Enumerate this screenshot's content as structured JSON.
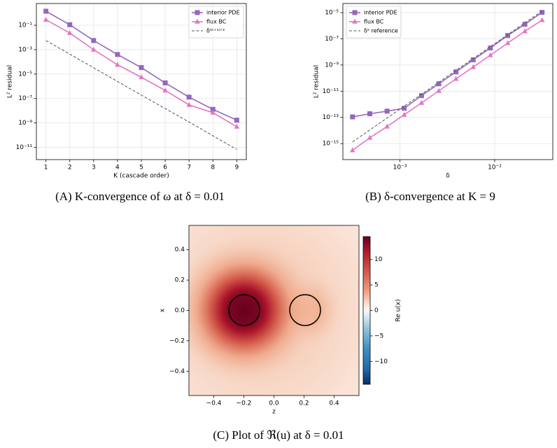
{
  "chart_data": [
    {
      "type": "line",
      "caption": "(A) K-convergence of ω at δ = 0.01",
      "xlabel": "K (cascade order)",
      "ylabel": "L² residual",
      "xscale": "linear",
      "yscale": "log",
      "grid": true,
      "legend": "upper right",
      "x": [
        1,
        2,
        3,
        4,
        5,
        6,
        7,
        8,
        9
      ],
      "xlim": [
        0.6,
        9.4
      ],
      "xticks": [
        1,
        2,
        3,
        4,
        5,
        6,
        7,
        8,
        9
      ],
      "ylim": [
        1e-12,
        6
      ],
      "yticks": [
        {
          "value": 0.1,
          "label": "10⁻¹"
        },
        {
          "value": 0.001,
          "label": "10⁻³"
        },
        {
          "value": 1e-05,
          "label": "10⁻⁵"
        },
        {
          "value": 1e-07,
          "label": "10⁻⁷"
        },
        {
          "value": 1e-09,
          "label": "10⁻⁹"
        },
        {
          "value": 1e-11,
          "label": "10⁻¹¹"
        }
      ],
      "series": [
        {
          "name": "interior PDE",
          "color": "#9467bd",
          "marker": "square",
          "values": [
            1.4,
            0.11,
            0.0056,
            0.0004,
            3.4e-05,
            1.9e-06,
            1.3e-07,
            1.3e-08,
            1.7e-09
          ]
        },
        {
          "name": "flux BC",
          "color": "#e377c2",
          "marker": "triangle",
          "values": [
            0.28,
            0.023,
            0.001,
            5.8e-05,
            5.5e-06,
            4.6e-07,
            3e-08,
            6.9e-09,
            5e-10
          ]
        },
        {
          "name": "δ⁽ᴷ⁺¹⁾ᐟ²",
          "color": "#555555",
          "marker": "none",
          "dash": true,
          "values": [
            0.0056,
            0.00043,
            3.3e-05,
            2.5e-06,
            1.9e-07,
            1.5e-08,
            1.2e-09,
            8.9e-11,
            6.8e-12
          ]
        }
      ]
    },
    {
      "type": "line",
      "caption": "(B) δ-convergence at K = 9",
      "xlabel": "δ",
      "ylabel": "L² residual",
      "xscale": "log",
      "yscale": "log",
      "grid": true,
      "legend": "upper left",
      "x": [
        0.000316,
        0.000481,
        0.000731,
        0.00111,
        0.00169,
        0.00257,
        0.0039,
        0.00593,
        0.009,
        0.0137,
        0.0208,
        0.0316
      ],
      "xlim": [
        0.00025,
        0.041
      ],
      "xticks": [
        {
          "value": 0.001,
          "label": "10⁻³"
        },
        {
          "value": 0.01,
          "label": "10⁻²"
        }
      ],
      "ylim": [
        6e-17,
        5e-05
      ],
      "yticks": [
        {
          "value": 1e-05,
          "label": "10⁻⁵"
        },
        {
          "value": 1e-07,
          "label": "10⁻⁷"
        },
        {
          "value": 1e-09,
          "label": "10⁻⁹"
        },
        {
          "value": 1e-11,
          "label": "10⁻¹¹"
        },
        {
          "value": 1e-13,
          "label": "10⁻¹³"
        },
        {
          "value": 1e-15,
          "label": "10⁻¹⁵"
        }
      ],
      "series": [
        {
          "name": "interior PDE",
          "color": "#9467bd",
          "marker": "square",
          "values": [
            1.1e-13,
            1.9e-13,
            3e-13,
            5e-13,
            4.6e-12,
            3.7e-11,
            3e-10,
            2.5e-09,
            2e-08,
            1.8e-07,
            1.3e-06,
            1.05e-05
          ]
        },
        {
          "name": "flux BC",
          "color": "#e377c2",
          "marker": "triangle",
          "values": [
            3.1e-16,
            2.8e-15,
            2e-14,
            1.6e-13,
            1.3e-12,
            1.07e-11,
            8.7e-11,
            7e-10,
            5.7e-09,
            4.7e-08,
            3.8e-07,
            2.7e-06
          ]
        },
        {
          "name": "δ⁵ reference",
          "color": "#555555",
          "marker": "none",
          "dash": true,
          "x": [
            0.000316,
            0.0316
          ],
          "values": [
            1.35e-15,
            1.35e-05
          ]
        }
      ]
    },
    {
      "type": "heatmap",
      "caption": "(C) Plot of ℜ(u) at δ = 0.01",
      "xlabel": "z",
      "ylabel": "x",
      "colorbar_label": "Re u(x)",
      "xlim": [
        -0.565,
        0.565
      ],
      "ylim": [
        -0.56,
        0.56
      ],
      "xticks": [
        {
          "value": -0.4,
          "label": "−0.4"
        },
        {
          "value": -0.2,
          "label": "−0.2"
        },
        {
          "value": 0,
          "label": "0.0"
        },
        {
          "value": 0.2,
          "label": "0.2"
        },
        {
          "value": 0.4,
          "label": "0.4"
        }
      ],
      "yticks": [
        {
          "value": -0.4,
          "label": "−0.4"
        },
        {
          "value": -0.2,
          "label": "−0.2"
        },
        {
          "value": 0,
          "label": "0.0"
        },
        {
          "value": 0.2,
          "label": "0.2"
        },
        {
          "value": 0.4,
          "label": "0.4"
        }
      ],
      "clim": [
        -14.5,
        14.5
      ],
      "cticks": [
        {
          "value": -10,
          "label": "−10"
        },
        {
          "value": -5,
          "label": "−5"
        },
        {
          "value": 0,
          "label": "0"
        },
        {
          "value": 5,
          "label": "5"
        },
        {
          "value": 10,
          "label": "10"
        }
      ]
    }
  ]
}
